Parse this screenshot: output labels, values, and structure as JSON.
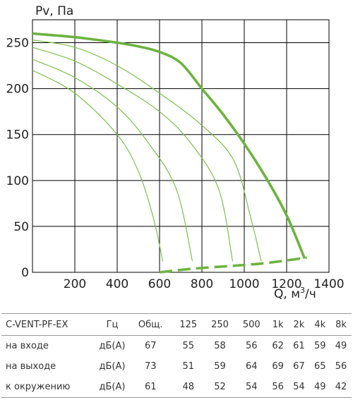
{
  "chart_data": {
    "type": "line",
    "ylabel": "Pv, Па",
    "xlabel": "Q, м³/ч",
    "xlabel_base": "Q, м",
    "xlabel_sup": "3",
    "xlabel_tail": "/ч",
    "xlim": [
      0,
      1400
    ],
    "ylim": [
      0,
      275
    ],
    "x_ticks": [
      0,
      200,
      400,
      600,
      800,
      1000,
      1200,
      1400
    ],
    "y_ticks": [
      0,
      50,
      100,
      150,
      200,
      250
    ],
    "grid": true,
    "colors": {
      "main": "#6db33f",
      "thin": "#7cc04a",
      "grid": "#000000"
    },
    "series": [
      {
        "style": "thick",
        "points": [
          [
            0,
            260
          ],
          [
            200,
            256
          ],
          [
            400,
            250
          ],
          [
            500,
            246
          ],
          [
            600,
            240
          ],
          [
            700,
            228
          ],
          [
            800,
            200
          ],
          [
            900,
            172
          ],
          [
            1000,
            140
          ],
          [
            1100,
            104
          ],
          [
            1200,
            62
          ],
          [
            1285,
            15
          ]
        ]
      },
      {
        "style": "thin",
        "points": [
          [
            0,
            253
          ],
          [
            200,
            245
          ],
          [
            400,
            225
          ],
          [
            600,
            195
          ],
          [
            800,
            160
          ],
          [
            950,
            122
          ],
          [
            1030,
            60
          ],
          [
            1080,
            12
          ]
        ]
      },
      {
        "style": "thin",
        "points": [
          [
            0,
            245
          ],
          [
            200,
            230
          ],
          [
            400,
            205
          ],
          [
            600,
            175
          ],
          [
            750,
            140
          ],
          [
            880,
            90
          ],
          [
            945,
            12
          ]
        ]
      },
      {
        "style": "thin",
        "points": [
          [
            0,
            232
          ],
          [
            200,
            212
          ],
          [
            400,
            180
          ],
          [
            550,
            140
          ],
          [
            680,
            90
          ],
          [
            755,
            12
          ]
        ]
      },
      {
        "style": "thin",
        "points": [
          [
            0,
            220
          ],
          [
            200,
            195
          ],
          [
            400,
            150
          ],
          [
            500,
            110
          ],
          [
            570,
            60
          ],
          [
            615,
            12
          ]
        ]
      },
      {
        "style": "dashed",
        "points": [
          [
            600,
            0
          ],
          [
            760,
            4
          ],
          [
            940,
            7
          ],
          [
            1100,
            10
          ],
          [
            1295,
            16
          ]
        ]
      }
    ]
  },
  "table": {
    "headers": [
      "C-VENT-PF-EX",
      "Гц",
      "Общ.",
      "125",
      "250",
      "500",
      "1k",
      "2k",
      "4k",
      "8k"
    ],
    "rows": [
      [
        "на входе",
        "дБ(А)",
        "67",
        "55",
        "58",
        "56",
        "62",
        "61",
        "59",
        "49"
      ],
      [
        "на выходе",
        "дБ(А)",
        "73",
        "51",
        "59",
        "64",
        "69",
        "67",
        "65",
        "56"
      ],
      [
        "к окружению",
        "дБ(А)",
        "61",
        "48",
        "52",
        "54",
        "56",
        "54",
        "49",
        "42"
      ]
    ]
  }
}
